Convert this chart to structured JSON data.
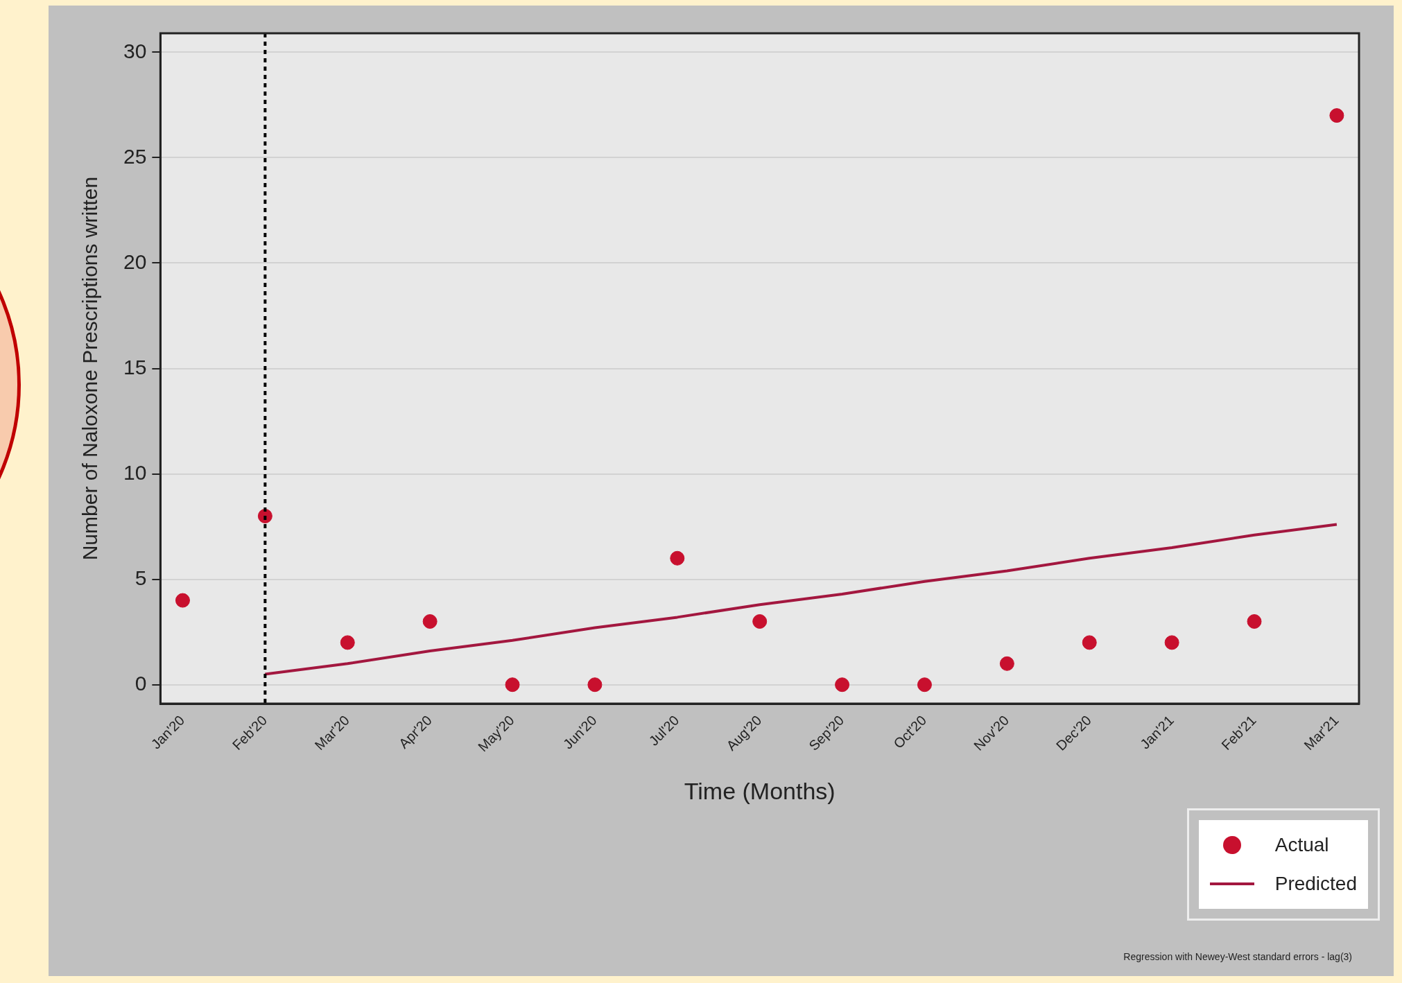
{
  "chart_data": {
    "type": "scatter",
    "xlabel": "Time (Months)",
    "ylabel": "Number of Naloxone Prescriptions written",
    "categories": [
      "Jan'20",
      "Feb'20",
      "Mar'20",
      "Apr'20",
      "May'20",
      "Jun'20",
      "Jul'20",
      "Aug'20",
      "Sep'20",
      "Oct'20",
      "Nov'20",
      "Dec'20",
      "Jan'21",
      "Feb'21",
      "Mar'21"
    ],
    "series": [
      {
        "name": "Actual",
        "type": "scatter",
        "color": "#c8102e",
        "marker": "circle",
        "values": [
          4,
          8,
          2,
          3,
          0,
          0,
          6,
          3,
          0,
          0,
          1,
          2,
          2,
          3,
          27
        ]
      },
      {
        "name": "Predicted",
        "type": "line",
        "color": "#a3173f",
        "marker": "none",
        "line_style": "solid",
        "values": [
          null,
          0.5,
          1.0,
          1.6,
          2.1,
          2.7,
          3.2,
          3.8,
          4.3,
          4.9,
          5.4,
          6.0,
          6.5,
          7.1,
          7.6
        ]
      }
    ],
    "ylim": [
      -0.9,
      30.9
    ],
    "yticks": [
      0,
      5,
      10,
      15,
      20,
      25,
      30
    ],
    "grid": "y",
    "legend": "bottom right",
    "ref_lines": [
      {
        "axis": "x",
        "value": "Feb'20",
        "color": "#000000",
        "line_style": "dashed"
      }
    ],
    "annotations": [
      "Regression with Newey-West standard errors - lag(3)"
    ]
  }
}
